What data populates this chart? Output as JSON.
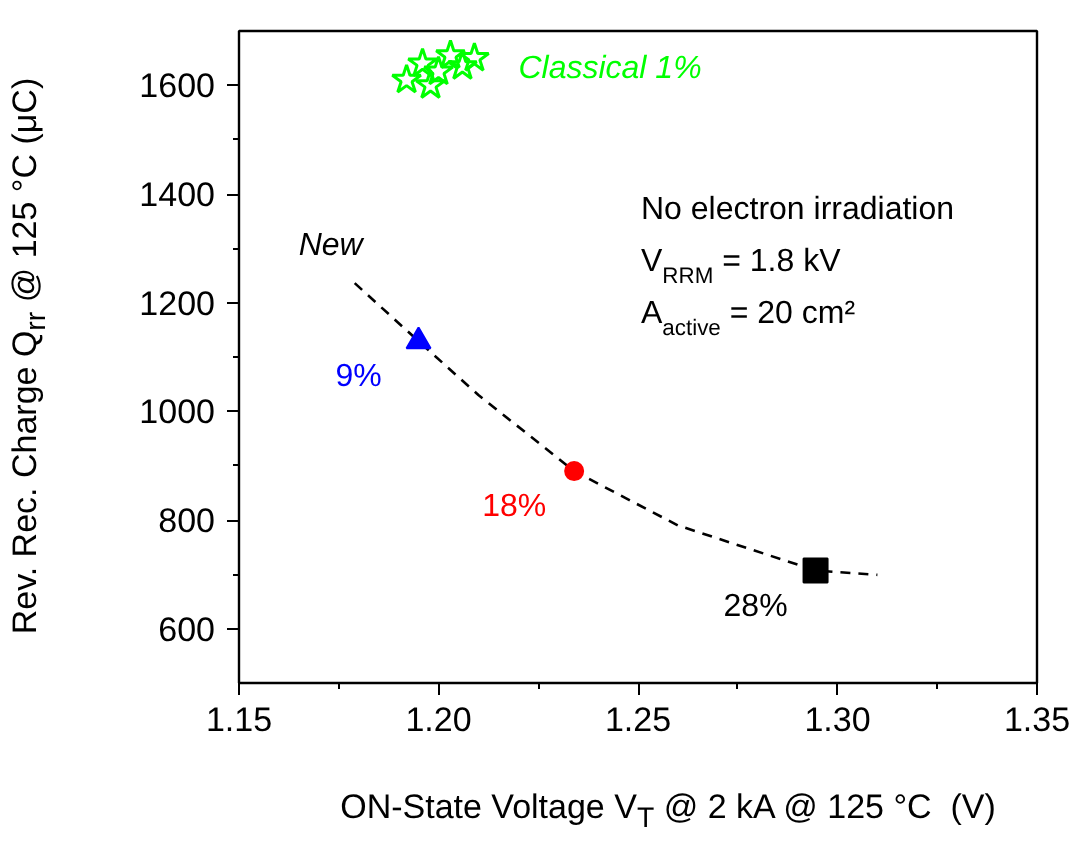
{
  "chart_data": {
    "type": "scatter",
    "xlabel": "ON-State Voltage V$_{T}$ @ 2 kA @ 125 °C  (V)",
    "ylabel": "Rev. Rec. Charge Q$_{rr}$ @ 125 °C (μC)",
    "xlim": [
      1.15,
      1.35
    ],
    "xticks": [
      {
        "value": 1.15,
        "label": "1.15"
      },
      {
        "value": 1.2,
        "label": "1.20"
      },
      {
        "value": 1.25,
        "label": "1.25"
      },
      {
        "value": 1.3,
        "label": "1.30"
      },
      {
        "value": 1.35,
        "label": "1.35"
      }
    ],
    "ylim": [
      500,
      1700
    ],
    "yticks": [
      600,
      800,
      1000,
      1200,
      1400,
      1600
    ],
    "grid": false,
    "series": [
      {
        "name": "Classical 1%",
        "color": "#00ff00",
        "marker": "star",
        "x": [
          1.192,
          1.196,
          1.2,
          1.203,
          1.206,
          1.209,
          1.198
        ],
        "values": [
          1610,
          1640,
          1625,
          1655,
          1635,
          1650,
          1600
        ]
      },
      {
        "name": "New",
        "type": "line",
        "color": "#000000",
        "line_style": "dashed",
        "marker": "none",
        "x": [
          1.179,
          1.195,
          1.21,
          1.234,
          1.26,
          1.2945,
          1.31
        ],
        "values": [
          1236,
          1129,
          1030,
          890,
          790,
          707,
          699
        ]
      },
      {
        "color": "#0000ff",
        "marker": "triangle",
        "x": [
          1.195
        ],
        "values": [
          1129
        ]
      },
      {
        "color": "#ff0000",
        "marker": "circle",
        "x": [
          1.234
        ],
        "values": [
          890
        ]
      },
      {
        "color": "#000000",
        "marker": "square",
        "x": [
          1.2945
        ],
        "values": [
          707
        ]
      }
    ],
    "annotations": [
      "No electron irradiation",
      "V$_{RRM}$ = 1.8 kV",
      "A$_{active}$ = 20 cm²",
      {
        "text": "9%",
        "x": 1.195,
        "y": 1129
      },
      {
        "text": "18%",
        "x": 1.234,
        "y": 890
      },
      {
        "text": "28%",
        "x": 1.2945,
        "y": 707
      }
    ]
  }
}
